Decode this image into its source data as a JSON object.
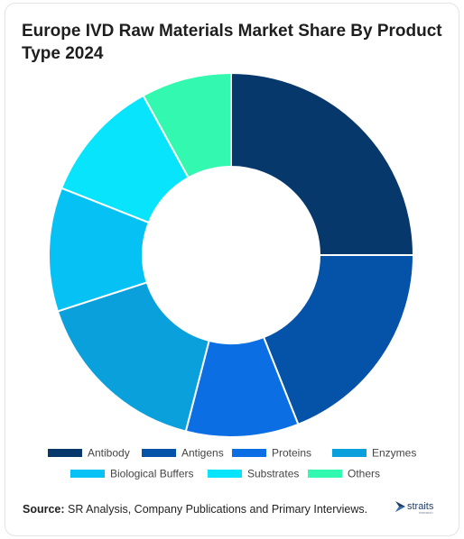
{
  "title": "Europe IVD Raw Materials Market Share By Product Type 2024",
  "chart_data": {
    "type": "pie",
    "donut": true,
    "title": "Europe IVD Raw Materials Market Share By Product Type 2024",
    "legend_position": "bottom",
    "categories": [
      "Antibody",
      "Antigens",
      "Proteins",
      "Enzymes",
      "Biological Buffers",
      "Substrates",
      "Others"
    ],
    "values": [
      25,
      19,
      10,
      16,
      11,
      11,
      8
    ],
    "colors": [
      "#06386b",
      "#0553a9",
      "#0b6ee3",
      "#0aa0dc",
      "#06c2f4",
      "#07e4fc",
      "#33f9b0"
    ]
  },
  "source": {
    "label": "Source:",
    "text": "SR Analysis, Company Publications and Primary Interviews."
  },
  "logo": {
    "name": "straits",
    "sub": "research"
  }
}
